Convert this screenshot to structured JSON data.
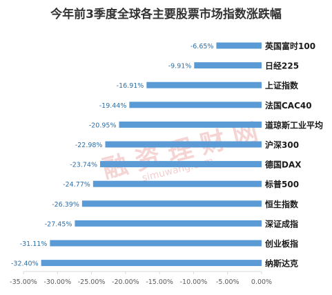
{
  "title": "今年前3季度全球各主要股票市场指数涨跌幅",
  "colors": {
    "bar": "#5b9bd5",
    "data_label": "#2e6ea6",
    "axis": "#d9d9d9",
    "tick_label": "#595959",
    "category_label": "#1a1a1a"
  },
  "watermark": {
    "text_cn": "融 资 理 财 网",
    "text_en": "simuwang.com"
  },
  "chart_data": {
    "type": "bar",
    "orientation": "horizontal",
    "title": "今年前3季度全球各主要股票市场指数涨跌幅",
    "categories": [
      "英国富时100",
      "日经225",
      "上证指数",
      "法国CAC40",
      "道琼斯工业平均",
      "沪深300",
      "德国DAX",
      "标普500",
      "恒生指数",
      "深证成指",
      "创业板指",
      "纳斯达克"
    ],
    "values": [
      -6.65,
      -9.91,
      -16.91,
      -19.44,
      -20.95,
      -22.98,
      -23.74,
      -24.77,
      -26.39,
      -27.45,
      -31.11,
      -32.4
    ],
    "data_labels": [
      "-6.65%",
      "-9.91%",
      "-16.91%",
      "-19.44%",
      "-20.95%",
      "-22.98%",
      "-23.74%",
      "-24.77%",
      "-26.39%",
      "-27.45%",
      "-31.11%",
      "-32.40%"
    ],
    "xlim": [
      -35,
      0
    ],
    "x_ticks": [
      -35,
      -30,
      -25,
      -20,
      -15,
      -10,
      -5,
      0
    ],
    "x_tick_labels": [
      "-35.00%",
      "-30.00%",
      "-25.00%",
      "-20.00%",
      "-15.00%",
      "-10.00%",
      "-5.00%",
      "0.00%"
    ],
    "grid": false,
    "legend": "none",
    "xlabel": "",
    "ylabel": ""
  }
}
